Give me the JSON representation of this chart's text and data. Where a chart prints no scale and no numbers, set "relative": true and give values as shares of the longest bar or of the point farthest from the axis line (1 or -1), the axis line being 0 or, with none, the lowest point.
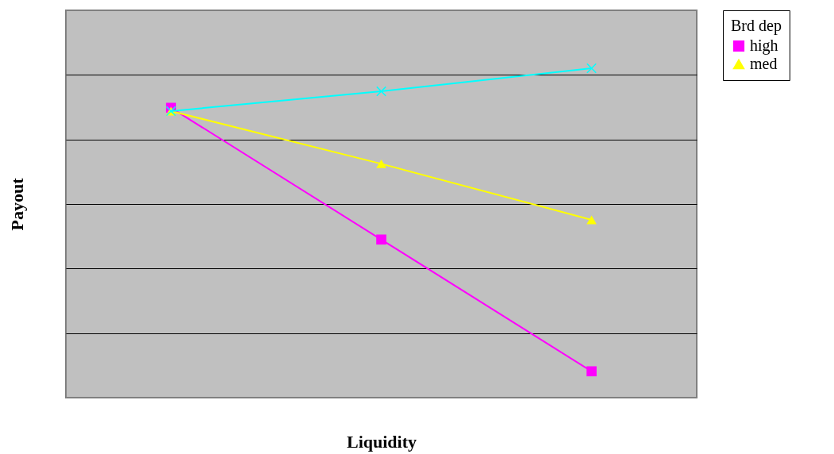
{
  "chart_data": {
    "type": "line",
    "relative": true,
    "xlabel": "Liquidity",
    "ylabel": "Payout",
    "legend_title": "Brd dep",
    "legend": "right",
    "grid": "y",
    "tick_labels": false,
    "categories": [
      null,
      null,
      null
    ],
    "series": [
      {
        "name": "high",
        "color": "#ff00ff",
        "marker": "square",
        "values": [
          0.88,
          0.48,
          0.08
        ]
      },
      {
        "name": "med",
        "color": "#ffff00",
        "marker": "triangle",
        "values": [
          0.87,
          0.71,
          0.54
        ]
      },
      {
        "color": "#00ffff",
        "marker": "cross",
        "values": [
          0.87,
          0.93,
          1
        ]
      }
    ]
  }
}
